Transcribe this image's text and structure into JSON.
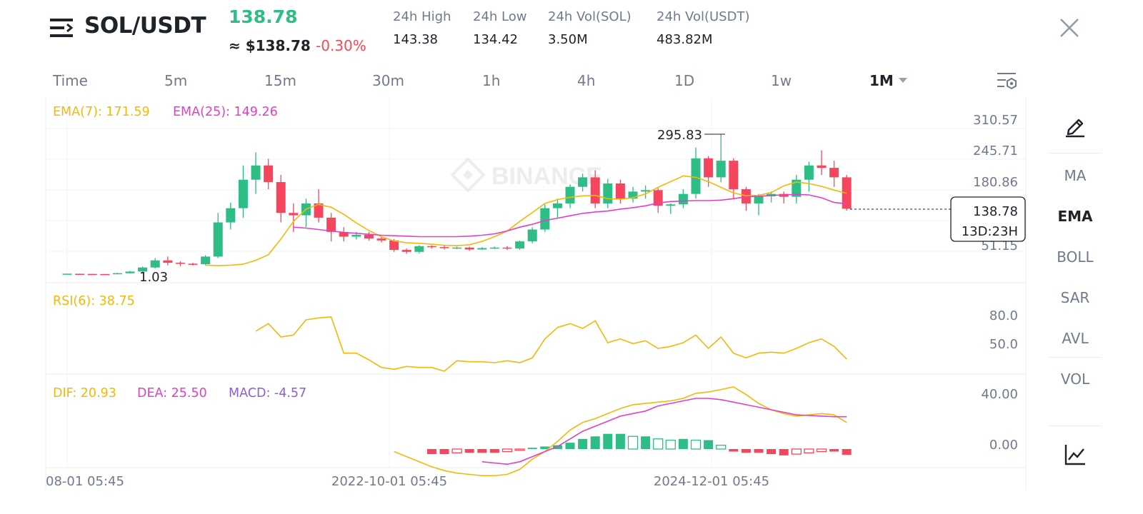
{
  "header": {
    "pair": "SOL/USDT",
    "last_price": "138.78",
    "usd_price": "≈ $138.78",
    "change": "-0.30%",
    "stats": [
      {
        "label": "24h High",
        "value": "143.38"
      },
      {
        "label": "24h Low",
        "value": "134.42"
      },
      {
        "label": "24h Vol(SOL)",
        "value": "3.50M"
      },
      {
        "label": "24h Vol(USDT)",
        "value": "483.82M"
      }
    ]
  },
  "intervals": [
    "Time",
    "5m",
    "15m",
    "30m",
    "1h",
    "4h",
    "1D",
    "1w",
    "1M"
  ],
  "active_interval": "1M",
  "right_menu": [
    "MA",
    "EMA",
    "BOLL",
    "SAR",
    "AVL",
    "VOL"
  ],
  "active_indicator": "EMA",
  "icons": [
    "menu-icon",
    "close-icon",
    "chart-settings-icon",
    "chevron-down-icon",
    "pencil-draw-icon",
    "line-chart-icon"
  ],
  "colors": {
    "up": "#2ebd85",
    "down": "#f6465d",
    "ema7": "#f0b90b",
    "ema25": "#e040c8",
    "macd": "#8e5fd0"
  },
  "chart_data": {
    "type": "candlestick",
    "watermark": "BINANCE",
    "legend": {
      "ema7": "EMA(7): 171.59",
      "ema25": "EMA(25): 149.26"
    },
    "price_ticks": [
      "310.57",
      "245.71",
      "180.86",
      "51.15"
    ],
    "annotations": {
      "max": "295.83",
      "min": "1.03"
    },
    "current_price": {
      "price": "138.78",
      "countdown": "13D:23H"
    },
    "x_labels": [
      "08-01 05:45",
      "2022-10-01 05:45",
      "2024-12-01 05:45"
    ],
    "candles": [
      [
        2,
        2,
        2,
        2
      ],
      [
        1.8,
        1.5,
        2,
        1.4
      ],
      [
        1.5,
        1.3,
        1.6,
        1.1
      ],
      [
        1.3,
        1.2,
        1.4,
        1.03
      ],
      [
        1.2,
        3,
        4,
        1.03
      ],
      [
        3,
        6.5,
        8,
        2
      ],
      [
        6.5,
        15,
        17,
        5
      ],
      [
        15,
        30,
        35,
        13
      ],
      [
        30,
        25,
        38,
        20
      ],
      [
        25,
        23,
        28,
        18
      ],
      [
        23,
        22,
        25,
        19
      ],
      [
        22,
        38,
        41,
        20
      ],
      [
        38,
        110,
        130,
        35
      ],
      [
        110,
        140,
        152,
        95
      ],
      [
        140,
        200,
        230,
        120
      ],
      [
        200,
        230,
        258,
        170
      ],
      [
        230,
        195,
        244,
        180
      ],
      [
        195,
        130,
        210,
        110
      ],
      [
        130,
        125,
        150,
        90
      ],
      [
        125,
        150,
        160,
        100
      ],
      [
        150,
        120,
        180,
        110
      ],
      [
        120,
        90,
        130,
        70
      ],
      [
        90,
        80,
        100,
        70
      ],
      [
        80,
        84,
        90,
        74
      ],
      [
        84,
        76,
        90,
        72
      ],
      [
        76,
        72,
        80,
        68
      ],
      [
        72,
        52,
        75,
        48
      ],
      [
        52,
        48,
        55,
        44
      ],
      [
        48,
        60,
        62,
        45
      ],
      [
        60,
        58,
        62,
        55
      ],
      [
        58,
        56,
        62,
        53
      ],
      [
        56,
        57,
        59,
        54
      ],
      [
        57,
        53,
        59,
        50
      ],
      [
        53,
        56,
        58,
        52
      ],
      [
        56,
        57,
        59,
        54
      ],
      [
        57,
        55,
        60,
        52
      ],
      [
        55,
        70,
        72,
        52
      ],
      [
        70,
        95,
        100,
        66
      ],
      [
        95,
        140,
        148,
        90
      ],
      [
        140,
        150,
        160,
        120
      ],
      [
        150,
        185,
        190,
        140
      ],
      [
        185,
        205,
        213,
        175
      ],
      [
        205,
        150,
        220,
        140
      ],
      [
        150,
        192,
        202,
        140
      ],
      [
        192,
        160,
        200,
        150
      ],
      [
        160,
        175,
        185,
        152
      ],
      [
        175,
        178,
        188,
        160
      ],
      [
        178,
        145,
        182,
        130
      ],
      [
        145,
        148,
        150,
        128
      ],
      [
        148,
        170,
        180,
        140
      ],
      [
        170,
        245,
        268,
        160
      ],
      [
        245,
        205,
        250,
        185
      ],
      [
        205,
        240,
        295.83,
        195
      ],
      [
        240,
        180,
        245,
        160
      ],
      [
        180,
        150,
        185,
        135
      ],
      [
        150,
        165,
        170,
        125
      ],
      [
        165,
        170,
        175,
        152
      ],
      [
        170,
        164,
        175,
        150
      ],
      [
        164,
        200,
        210,
        150
      ],
      [
        200,
        230,
        238,
        175
      ],
      [
        230,
        225,
        262,
        210
      ],
      [
        225,
        205,
        240,
        185
      ],
      [
        205,
        138.78,
        210,
        135
      ]
    ],
    "ema7": [
      20,
      19,
      20,
      22,
      30,
      42,
      75,
      112,
      138,
      148,
      142,
      127,
      109,
      93,
      80,
      71,
      67,
      66,
      64,
      62,
      61,
      63,
      70,
      80,
      92,
      112,
      131,
      150,
      158,
      163,
      166,
      167,
      160,
      159,
      162,
      170,
      184,
      196,
      208,
      205,
      196,
      184,
      172,
      166,
      167,
      173,
      187,
      195,
      192,
      186,
      178,
      171.59
    ],
    "ema25": [
      100,
      98,
      95,
      92,
      89,
      87,
      85,
      83,
      82,
      81,
      80,
      80,
      80,
      80,
      81,
      83,
      86,
      92,
      100,
      106,
      114,
      119,
      124,
      129,
      132,
      134,
      138,
      141,
      145,
      151,
      154,
      155,
      156,
      156,
      157,
      160,
      164,
      165,
      167,
      168,
      169,
      168,
      162,
      152,
      149.26
    ],
    "rsi": {
      "label": "RSI(6): 38.75",
      "ticks": [
        "80.0",
        "50.0"
      ],
      "values": [
        68,
        76,
        62,
        64,
        80,
        82,
        83,
        45,
        45,
        38,
        30,
        28,
        31,
        30,
        30,
        26,
        37,
        36,
        36,
        35,
        37,
        35,
        40,
        60,
        72,
        76,
        71,
        79,
        56,
        60,
        55,
        58,
        50,
        52,
        56,
        64,
        50,
        62,
        45,
        40,
        45,
        46,
        45,
        50,
        56,
        60,
        52,
        38.75
      ]
    },
    "macd": {
      "dif_label": "DIF: 20.93",
      "dea_label": "DEA: 25.50",
      "macd_label": "MACD: -4.57",
      "ticks": [
        "40.00",
        "0.00"
      ],
      "dif": [
        -2,
        -6,
        -10,
        -14,
        -17,
        -19,
        -20,
        -21,
        -21,
        -20,
        -16,
        -8,
        -2,
        6,
        15,
        21,
        24,
        28,
        32,
        35,
        36,
        37,
        38,
        40,
        44,
        45,
        47,
        49,
        43,
        36,
        31,
        28,
        26,
        27,
        28,
        27,
        20.93
      ],
      "dea": [
        -10,
        -11,
        -12,
        -10,
        -6,
        -2,
        2,
        8,
        14,
        18,
        22,
        26,
        28,
        30,
        34,
        36,
        38,
        40,
        40,
        39,
        37,
        35,
        33,
        31,
        29,
        27,
        26.5,
        26,
        25.5,
        25.5
      ],
      "hist": [
        -4,
        -4,
        -3,
        -3,
        -3,
        -3,
        -2,
        -1,
        1,
        2,
        3,
        5,
        8,
        10,
        12,
        12,
        10,
        10,
        8,
        7,
        8,
        7,
        7,
        3,
        -2,
        -3,
        -3,
        -4,
        -5,
        -4,
        -3,
        -2,
        -2,
        -4.57
      ]
    }
  }
}
